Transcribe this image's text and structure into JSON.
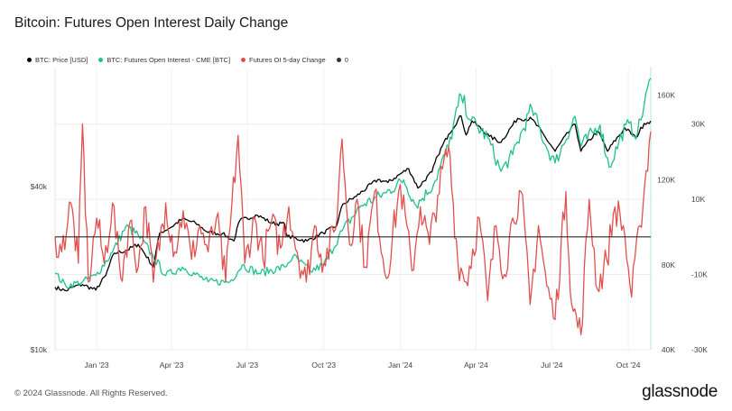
{
  "header": {
    "title": "Bitcoin: Futures Open Interest Daily Change"
  },
  "footer": {
    "copyright": "© 2024 Glassnode. All Rights Reserved.",
    "logo": "glassnode"
  },
  "colors": {
    "price": "#000000",
    "open_interest": "#20c08a",
    "oi_change": "#e0504f",
    "zero": "#333333"
  },
  "chart_data": {
    "type": "line",
    "title": "Bitcoin: Futures Open Interest Daily Change",
    "x_start": "2022-11-12",
    "x_end": "2024-10-28",
    "x_ticks": [
      "Jan '23",
      "Apr '23",
      "Jul '23",
      "Oct '23",
      "Jan '24",
      "Apr '24",
      "Jul '24",
      "Oct '24"
    ],
    "y_left": {
      "scale": "log",
      "range": [
        10000,
        110000
      ],
      "ticks": [
        "$10k",
        "$40k"
      ]
    },
    "y_mid": {
      "range": [
        40000,
        173000
      ],
      "ticks": [
        "40K",
        "80K",
        "120K",
        "160K"
      ]
    },
    "y_right": {
      "range": [
        -30000,
        45000
      ],
      "ticks": [
        "-30K",
        "-10K",
        "10K",
        "30K"
      ]
    },
    "grid": true,
    "legend_position": "top-left",
    "legend": [
      {
        "name": "BTC: Price [USD]",
        "color": "#000000"
      },
      {
        "name": "BTC: Futures Open Interest - CME [BTC]",
        "color": "#20c08a"
      },
      {
        "name": "Futures OI 5-day Change",
        "color": "#e0504f"
      },
      {
        "name": "0",
        "color": "#333333"
      }
    ],
    "series": [
      {
        "name": "BTC: Price [USD]",
        "axis": "left",
        "color": "#000000",
        "points": [
          [
            "2022-11-12",
            17000
          ],
          [
            "2022-11-25",
            16500
          ],
          [
            "2022-12-05",
            17100
          ],
          [
            "2022-12-15",
            17400
          ],
          [
            "2022-12-31",
            16600
          ],
          [
            "2023-01-12",
            18800
          ],
          [
            "2023-01-22",
            22700
          ],
          [
            "2023-02-05",
            23200
          ],
          [
            "2023-02-20",
            24500
          ],
          [
            "2023-03-10",
            20200
          ],
          [
            "2023-03-18",
            27000
          ],
          [
            "2023-04-01",
            28400
          ],
          [
            "2023-04-14",
            30400
          ],
          [
            "2023-04-30",
            29300
          ],
          [
            "2023-05-15",
            27100
          ],
          [
            "2023-06-01",
            26800
          ],
          [
            "2023-06-15",
            25200
          ],
          [
            "2023-06-22",
            30000
          ],
          [
            "2023-07-13",
            31400
          ],
          [
            "2023-07-31",
            29300
          ],
          [
            "2023-08-15",
            29100
          ],
          [
            "2023-08-18",
            26200
          ],
          [
            "2023-09-11",
            25200
          ],
          [
            "2023-09-30",
            27000
          ],
          [
            "2023-10-16",
            28500
          ],
          [
            "2023-10-24",
            34500
          ],
          [
            "2023-11-09",
            36800
          ],
          [
            "2023-12-05",
            42500
          ],
          [
            "2023-12-17",
            41400
          ],
          [
            "2024-01-11",
            46600
          ],
          [
            "2024-01-22",
            39500
          ],
          [
            "2024-02-08",
            45300
          ],
          [
            "2024-02-15",
            52000
          ],
          [
            "2024-02-28",
            62400
          ],
          [
            "2024-03-14",
            73000
          ],
          [
            "2024-03-20",
            62000
          ],
          [
            "2024-03-27",
            69900
          ],
          [
            "2024-04-17",
            61300
          ],
          [
            "2024-05-01",
            58300
          ],
          [
            "2024-05-21",
            71400
          ],
          [
            "2024-06-07",
            71000
          ],
          [
            "2024-06-24",
            60300
          ],
          [
            "2024-07-05",
            54000
          ],
          [
            "2024-07-29",
            68000
          ],
          [
            "2024-08-05",
            54000
          ],
          [
            "2024-08-25",
            64200
          ],
          [
            "2024-09-06",
            54000
          ],
          [
            "2024-09-27",
            65800
          ],
          [
            "2024-10-10",
            60500
          ],
          [
            "2024-10-20",
            68400
          ],
          [
            "2024-10-28",
            69900
          ]
        ]
      },
      {
        "name": "BTC: Futures Open Interest - CME [BTC]",
        "axis": "mid",
        "color": "#20c08a",
        "points": [
          [
            "2022-11-12",
            76000
          ],
          [
            "2022-11-25",
            70000
          ],
          [
            "2022-12-15",
            72000
          ],
          [
            "2022-12-31",
            75000
          ],
          [
            "2023-01-20",
            86000
          ],
          [
            "2023-02-05",
            98000
          ],
          [
            "2023-02-20",
            94000
          ],
          [
            "2023-03-10",
            84000
          ],
          [
            "2023-03-25",
            75000
          ],
          [
            "2023-04-14",
            79000
          ],
          [
            "2023-05-15",
            72000
          ],
          [
            "2023-06-10",
            72000
          ],
          [
            "2023-06-25",
            80000
          ],
          [
            "2023-07-15",
            76000
          ],
          [
            "2023-08-15",
            79000
          ],
          [
            "2023-08-25",
            84000
          ],
          [
            "2023-09-15",
            77000
          ],
          [
            "2023-10-01",
            80000
          ],
          [
            "2023-10-23",
            96000
          ],
          [
            "2023-11-15",
            108000
          ],
          [
            "2023-12-15",
            114000
          ],
          [
            "2024-01-05",
            120000
          ],
          [
            "2024-01-20",
            108000
          ],
          [
            "2024-02-10",
            118000
          ],
          [
            "2024-02-28",
            136000
          ],
          [
            "2024-03-14",
            160000
          ],
          [
            "2024-03-26",
            148000
          ],
          [
            "2024-04-15",
            140000
          ],
          [
            "2024-05-01",
            124000
          ],
          [
            "2024-05-15",
            132000
          ],
          [
            "2024-06-07",
            154000
          ],
          [
            "2024-06-25",
            135000
          ],
          [
            "2024-07-05",
            128000
          ],
          [
            "2024-07-29",
            150000
          ],
          [
            "2024-08-05",
            136000
          ],
          [
            "2024-08-28",
            146000
          ],
          [
            "2024-09-08",
            126000
          ],
          [
            "2024-09-28",
            146000
          ],
          [
            "2024-10-12",
            142000
          ],
          [
            "2024-10-28",
            168000
          ]
        ]
      },
      {
        "name": "Futures OI 5-day Change",
        "axis": "right",
        "color": "#e0504f",
        "points": [
          [
            "2022-11-12",
            0
          ],
          [
            "2022-11-20",
            -4000
          ],
          [
            "2022-12-01",
            9000
          ],
          [
            "2022-12-10",
            -7000
          ],
          [
            "2022-12-15",
            30000
          ],
          [
            "2022-12-22",
            -12000
          ],
          [
            "2023-01-01",
            5000
          ],
          [
            "2023-01-10",
            -7000
          ],
          [
            "2023-01-20",
            9000
          ],
          [
            "2023-01-30",
            -11000
          ],
          [
            "2023-02-10",
            4000
          ],
          [
            "2023-02-20",
            -8000
          ],
          [
            "2023-03-01",
            8000
          ],
          [
            "2023-03-10",
            -12000
          ],
          [
            "2023-03-25",
            9000
          ],
          [
            "2023-04-05",
            -4000
          ],
          [
            "2023-04-15",
            7000
          ],
          [
            "2023-04-25",
            -6000
          ],
          [
            "2023-05-05",
            3000
          ],
          [
            "2023-05-15",
            -4000
          ],
          [
            "2023-05-25",
            5000
          ],
          [
            "2023-06-05",
            -12000
          ],
          [
            "2023-06-20",
            27000
          ],
          [
            "2023-06-28",
            -7000
          ],
          [
            "2023-07-10",
            5000
          ],
          [
            "2023-07-20",
            -6000
          ],
          [
            "2023-07-30",
            4000
          ],
          [
            "2023-08-10",
            -3000
          ],
          [
            "2023-08-20",
            8000
          ],
          [
            "2023-08-30",
            -4000
          ],
          [
            "2023-09-10",
            -12000
          ],
          [
            "2023-09-20",
            3000
          ],
          [
            "2023-10-01",
            -7000
          ],
          [
            "2023-10-15",
            2000
          ],
          [
            "2023-10-23",
            26000
          ],
          [
            "2023-11-01",
            -2000
          ],
          [
            "2023-11-10",
            10000
          ],
          [
            "2023-11-20",
            -8000
          ],
          [
            "2023-12-01",
            12000
          ],
          [
            "2023-12-15",
            -11000
          ],
          [
            "2024-01-01",
            14000
          ],
          [
            "2024-01-15",
            -9000
          ],
          [
            "2024-01-25",
            8000
          ],
          [
            "2024-02-05",
            -2000
          ],
          [
            "2024-02-15",
            11000
          ],
          [
            "2024-02-28",
            24000
          ],
          [
            "2024-03-10",
            -6000
          ],
          [
            "2024-03-20",
            -12000
          ],
          [
            "2024-04-05",
            5000
          ],
          [
            "2024-04-15",
            -17000
          ],
          [
            "2024-04-25",
            3000
          ],
          [
            "2024-05-05",
            -10000
          ],
          [
            "2024-05-15",
            5000
          ],
          [
            "2024-05-25",
            12000
          ],
          [
            "2024-06-05",
            -18000
          ],
          [
            "2024-06-15",
            3000
          ],
          [
            "2024-06-25",
            -13000
          ],
          [
            "2024-07-05",
            -22000
          ],
          [
            "2024-07-18",
            12000
          ],
          [
            "2024-07-25",
            -18000
          ],
          [
            "2024-08-05",
            -26000
          ],
          [
            "2024-08-15",
            10000
          ],
          [
            "2024-08-25",
            -14000
          ],
          [
            "2024-09-05",
            -6000
          ],
          [
            "2024-09-15",
            8000
          ],
          [
            "2024-09-25",
            3000
          ],
          [
            "2024-10-05",
            -16000
          ],
          [
            "2024-10-15",
            3000
          ],
          [
            "2024-10-28",
            28000
          ]
        ]
      }
    ],
    "reference_line": {
      "name": "0",
      "value": 0,
      "axis": "right"
    }
  }
}
